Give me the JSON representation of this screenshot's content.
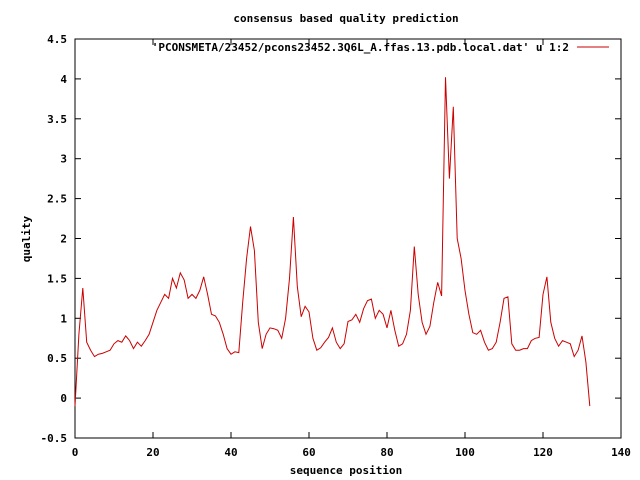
{
  "chart_data": {
    "type": "line",
    "title": "consensus based quality prediction",
    "xlabel": "sequence position",
    "ylabel": "quality",
    "xlim": [
      0,
      140
    ],
    "ylim": [
      -0.5,
      4.5
    ],
    "xticks": [
      "0",
      "20",
      "40",
      "60",
      "80",
      "100",
      "120",
      "140"
    ],
    "yticks": [
      "-0.5",
      "0",
      "0.5",
      "1",
      "1.5",
      "2",
      "2.5",
      "3",
      "3.5",
      "4",
      "4.5"
    ],
    "grid": false,
    "legend_position": "top-right",
    "series_color": "#cc0000",
    "series": [
      {
        "name": "'PCONSMETA/23452/pcons23452.3Q6L_A.ffas.13.pdb.local.dat' u 1:2",
        "x": [
          0,
          1,
          2,
          3,
          4,
          5,
          6,
          7,
          8,
          9,
          10,
          11,
          12,
          13,
          14,
          15,
          16,
          17,
          18,
          19,
          20,
          21,
          22,
          23,
          24,
          25,
          26,
          27,
          28,
          29,
          30,
          31,
          32,
          33,
          34,
          35,
          36,
          37,
          38,
          39,
          40,
          41,
          42,
          43,
          44,
          45,
          46,
          47,
          48,
          49,
          50,
          51,
          52,
          53,
          54,
          55,
          56,
          57,
          58,
          59,
          60,
          61,
          62,
          63,
          64,
          65,
          66,
          67,
          68,
          69,
          70,
          71,
          72,
          73,
          74,
          75,
          76,
          77,
          78,
          79,
          80,
          81,
          82,
          83,
          84,
          85,
          86,
          87,
          88,
          89,
          90,
          91,
          92,
          93,
          94,
          95,
          96,
          97,
          98,
          99,
          100,
          101,
          102,
          103,
          104,
          105,
          106,
          107,
          108,
          109,
          110,
          111,
          112,
          113,
          114,
          115,
          116,
          117,
          118,
          119,
          120,
          121,
          122,
          123,
          124,
          125,
          126,
          127,
          128,
          129,
          130,
          131,
          132
        ],
        "y": [
          -0.1,
          0.8,
          1.38,
          0.7,
          0.6,
          0.52,
          0.55,
          0.56,
          0.58,
          0.6,
          0.68,
          0.72,
          0.7,
          0.78,
          0.72,
          0.62,
          0.7,
          0.65,
          0.72,
          0.8,
          0.95,
          1.1,
          1.2,
          1.3,
          1.25,
          1.5,
          1.38,
          1.57,
          1.48,
          1.25,
          1.3,
          1.25,
          1.35,
          1.52,
          1.3,
          1.05,
          1.03,
          0.95,
          0.8,
          0.62,
          0.55,
          0.58,
          0.57,
          1.2,
          1.75,
          2.15,
          1.85,
          0.95,
          0.62,
          0.8,
          0.88,
          0.87,
          0.85,
          0.75,
          1.0,
          1.5,
          2.27,
          1.4,
          1.02,
          1.15,
          1.08,
          0.75,
          0.6,
          0.63,
          0.7,
          0.76,
          0.88,
          0.7,
          0.62,
          0.68,
          0.96,
          0.98,
          1.05,
          0.95,
          1.12,
          1.22,
          1.24,
          1.0,
          1.1,
          1.05,
          0.88,
          1.1,
          0.85,
          0.65,
          0.68,
          0.8,
          1.1,
          1.9,
          1.3,
          0.95,
          0.8,
          0.9,
          1.2,
          1.45,
          1.28,
          4.02,
          2.75,
          3.65,
          2.0,
          1.75,
          1.35,
          1.05,
          0.82,
          0.8,
          0.85,
          0.7,
          0.6,
          0.62,
          0.7,
          0.95,
          1.25,
          1.27,
          0.68,
          0.6,
          0.6,
          0.62,
          0.62,
          0.72,
          0.75,
          0.76,
          1.3,
          1.52,
          0.95,
          0.75,
          0.65,
          0.72,
          0.7,
          0.68,
          0.52,
          0.6,
          0.78,
          0.45,
          -0.1
        ]
      }
    ]
  }
}
